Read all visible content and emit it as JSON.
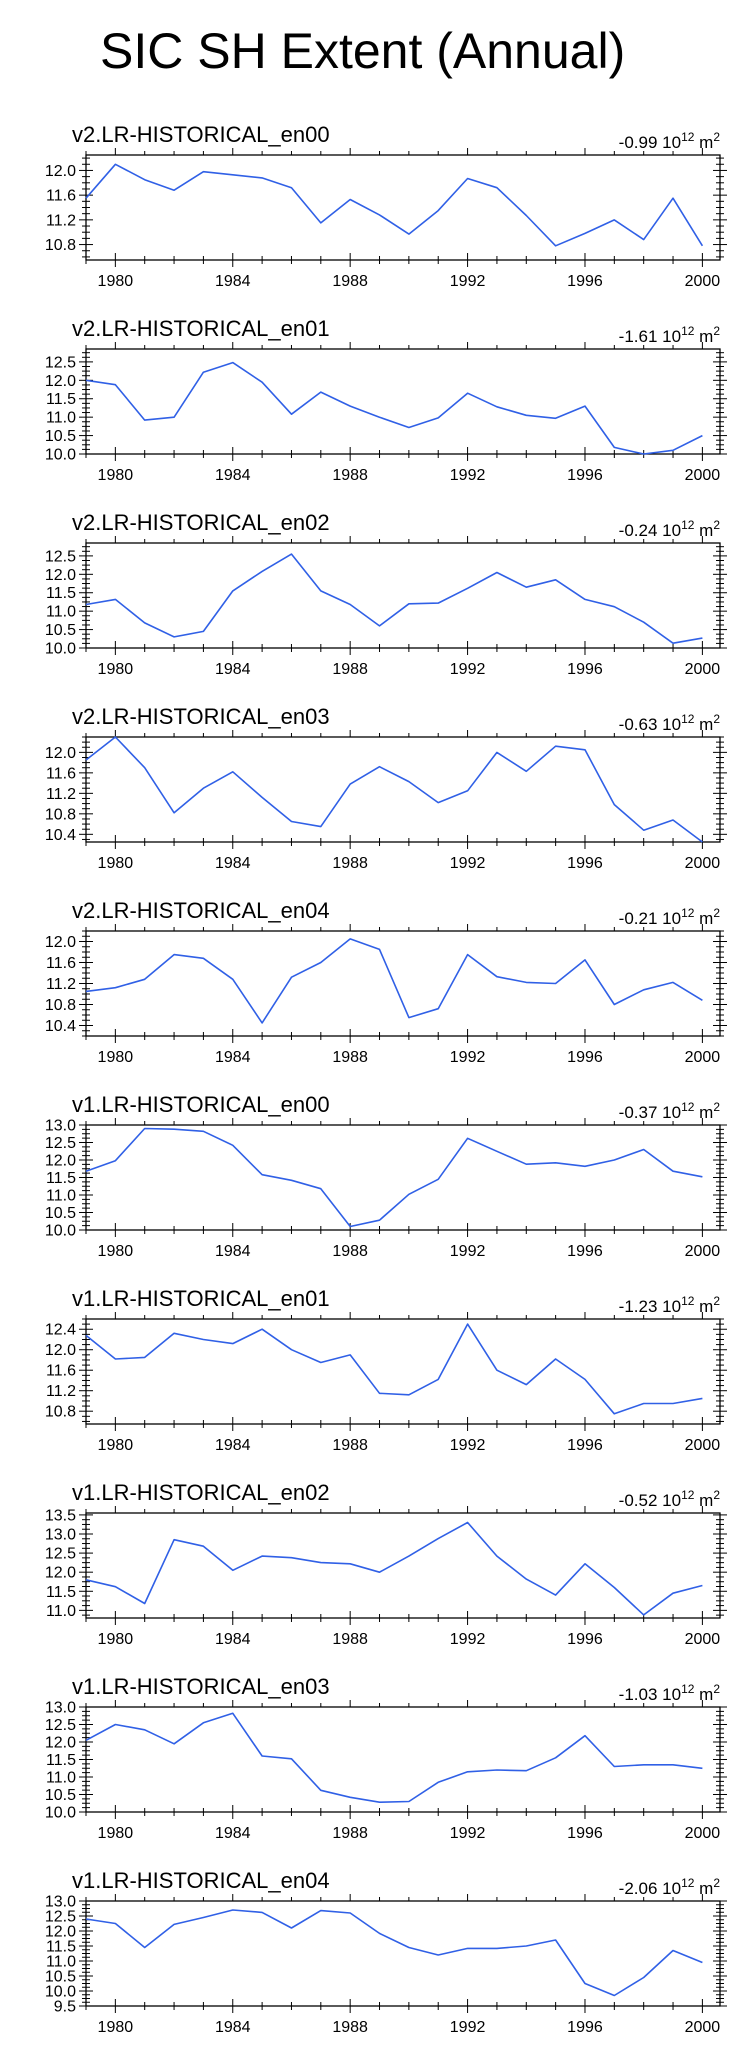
{
  "page": {
    "title": "SIC SH Extent (Annual)"
  },
  "style": {
    "line_color": "#3060e6",
    "axis_color": "#000000"
  },
  "chart_data": [
    {
      "type": "line",
      "title": "v2.LR-HISTORICAL_en00",
      "trend": "-0.99",
      "trend_units": "10",
      "trend_exp": "12",
      "trend_unit_m": "m",
      "trend_unit_exp": "2",
      "x": [
        1979,
        1980,
        1981,
        1982,
        1983,
        1984,
        1985,
        1986,
        1987,
        1988,
        1989,
        1990,
        1991,
        1992,
        1993,
        1994,
        1995,
        1996,
        1997,
        1998,
        1999,
        2000
      ],
      "values": [
        11.55,
        12.1,
        11.85,
        11.68,
        11.98,
        11.93,
        11.88,
        11.72,
        11.15,
        11.53,
        11.28,
        10.97,
        11.35,
        11.87,
        11.72,
        11.27,
        10.78,
        10.98,
        11.2,
        10.88,
        11.55,
        10.78
      ],
      "xlim": [
        1979,
        2000.6
      ],
      "ylim": [
        10.55,
        12.25
      ],
      "xticks": [
        "1980",
        "1984",
        "1988",
        "1992",
        "1996",
        "2000"
      ],
      "yticks": [
        "10.8",
        "11.2",
        "11.6",
        "12.0"
      ],
      "ytick_values": [
        10.8,
        11.2,
        11.6,
        12.0
      ]
    },
    {
      "type": "line",
      "title": "v2.LR-HISTORICAL_en01",
      "trend": "-1.61",
      "trend_units": "10",
      "trend_exp": "12",
      "trend_unit_m": "m",
      "trend_unit_exp": "2",
      "x": [
        1979,
        1980,
        1981,
        1982,
        1983,
        1984,
        1985,
        1986,
        1987,
        1988,
        1989,
        1990,
        1991,
        1992,
        1993,
        1994,
        1995,
        1996,
        1997,
        1998,
        1999,
        2000
      ],
      "values": [
        12.0,
        11.88,
        10.92,
        11.0,
        12.22,
        12.48,
        11.95,
        11.08,
        11.68,
        11.3,
        11.0,
        10.72,
        10.98,
        11.65,
        11.28,
        11.05,
        10.97,
        11.3,
        10.18,
        10.0,
        10.1,
        10.5
      ],
      "xlim": [
        1979,
        2000.6
      ],
      "ylim": [
        10.0,
        12.85
      ],
      "xticks": [
        "1980",
        "1984",
        "1988",
        "1992",
        "1996",
        "2000"
      ],
      "yticks": [
        "10.0",
        "10.5",
        "11.0",
        "11.5",
        "12.0",
        "12.5"
      ],
      "ytick_values": [
        10.0,
        10.5,
        11.0,
        11.5,
        12.0,
        12.5
      ]
    },
    {
      "type": "line",
      "title": "v2.LR-HISTORICAL_en02",
      "trend": "-0.24",
      "trend_units": "10",
      "trend_exp": "12",
      "trend_unit_m": "m",
      "trend_unit_exp": "2",
      "x": [
        1979,
        1980,
        1981,
        1982,
        1983,
        1984,
        1985,
        1986,
        1987,
        1988,
        1989,
        1990,
        1991,
        1992,
        1993,
        1994,
        1995,
        1996,
        1997,
        1998,
        1999,
        2000
      ],
      "values": [
        11.18,
        11.32,
        10.68,
        10.3,
        10.45,
        11.55,
        12.08,
        12.55,
        11.55,
        11.18,
        10.6,
        11.2,
        11.22,
        11.62,
        12.05,
        11.65,
        11.85,
        11.32,
        11.12,
        10.7,
        10.13,
        10.27
      ],
      "xlim": [
        1979,
        2000.6
      ],
      "ylim": [
        10.0,
        12.85
      ],
      "xticks": [
        "1980",
        "1984",
        "1988",
        "1992",
        "1996",
        "2000"
      ],
      "yticks": [
        "10.0",
        "10.5",
        "11.0",
        "11.5",
        "12.0",
        "12.5"
      ],
      "ytick_values": [
        10.0,
        10.5,
        11.0,
        11.5,
        12.0,
        12.5
      ]
    },
    {
      "type": "line",
      "title": "v2.LR-HISTORICAL_en03",
      "trend": "-0.63",
      "trend_units": "10",
      "trend_exp": "12",
      "trend_unit_m": "m",
      "trend_unit_exp": "2",
      "x": [
        1979,
        1980,
        1981,
        1982,
        1983,
        1984,
        1985,
        1986,
        1987,
        1988,
        1989,
        1990,
        1991,
        1992,
        1993,
        1994,
        1995,
        1996,
        1997,
        1998,
        1999,
        2000
      ],
      "values": [
        11.85,
        12.3,
        11.7,
        10.82,
        11.3,
        11.62,
        11.12,
        10.65,
        10.55,
        11.38,
        11.72,
        11.43,
        11.02,
        11.25,
        12.0,
        11.63,
        12.12,
        12.05,
        10.98,
        10.48,
        10.68,
        10.25
      ],
      "xlim": [
        1979,
        2000.6
      ],
      "ylim": [
        10.25,
        12.3
      ],
      "xticks": [
        "1980",
        "1984",
        "1988",
        "1992",
        "1996",
        "2000"
      ],
      "yticks": [
        "10.4",
        "10.8",
        "11.2",
        "11.6",
        "12.0"
      ],
      "ytick_values": [
        10.4,
        10.8,
        11.2,
        11.6,
        12.0
      ]
    },
    {
      "type": "line",
      "title": "v2.LR-HISTORICAL_en04",
      "trend": "-0.21",
      "trend_units": "10",
      "trend_exp": "12",
      "trend_unit_m": "m",
      "trend_unit_exp": "2",
      "x": [
        1979,
        1980,
        1981,
        1982,
        1983,
        1984,
        1985,
        1986,
        1987,
        1988,
        1989,
        1990,
        1991,
        1992,
        1993,
        1994,
        1995,
        1996,
        1997,
        1998,
        1999,
        2000
      ],
      "values": [
        11.05,
        11.12,
        11.28,
        11.75,
        11.68,
        11.28,
        10.45,
        11.32,
        11.6,
        12.05,
        11.85,
        10.55,
        10.72,
        11.75,
        11.33,
        11.22,
        11.2,
        11.65,
        10.8,
        11.08,
        11.22,
        10.88
      ],
      "xlim": [
        1979,
        2000.6
      ],
      "ylim": [
        10.2,
        12.2
      ],
      "xticks": [
        "1980",
        "1984",
        "1988",
        "1992",
        "1996",
        "2000"
      ],
      "yticks": [
        "10.4",
        "10.8",
        "11.2",
        "11.6",
        "12.0"
      ],
      "ytick_values": [
        10.4,
        10.8,
        11.2,
        11.6,
        12.0
      ]
    },
    {
      "type": "line",
      "title": "v1.LR-HISTORICAL_en00",
      "trend": "-0.37",
      "trend_units": "10",
      "trend_exp": "12",
      "trend_unit_m": "m",
      "trend_unit_exp": "2",
      "x": [
        1979,
        1980,
        1981,
        1982,
        1983,
        1984,
        1985,
        1986,
        1987,
        1988,
        1989,
        1990,
        1991,
        1992,
        1993,
        1994,
        1995,
        1996,
        1997,
        1998,
        1999,
        2000
      ],
      "values": [
        11.68,
        11.98,
        12.9,
        12.88,
        12.82,
        12.42,
        11.58,
        11.42,
        11.18,
        10.1,
        10.28,
        11.02,
        11.45,
        12.62,
        12.25,
        11.88,
        11.92,
        11.82,
        12.0,
        12.3,
        11.68,
        11.52
      ],
      "xlim": [
        1979,
        2000.6
      ],
      "ylim": [
        10.0,
        13.0
      ],
      "xticks": [
        "1980",
        "1984",
        "1988",
        "1992",
        "1996",
        "2000"
      ],
      "yticks": [
        "10.0",
        "10.5",
        "11.0",
        "11.5",
        "12.0",
        "12.5",
        "13.0"
      ],
      "ytick_values": [
        10.0,
        10.5,
        11.0,
        11.5,
        12.0,
        12.5,
        13.0
      ]
    },
    {
      "type": "line",
      "title": "v1.LR-HISTORICAL_en01",
      "trend": "-1.23",
      "trend_units": "10",
      "trend_exp": "12",
      "trend_unit_m": "m",
      "trend_unit_exp": "2",
      "x": [
        1979,
        1980,
        1981,
        1982,
        1983,
        1984,
        1985,
        1986,
        1987,
        1988,
        1989,
        1990,
        1991,
        1992,
        1993,
        1994,
        1995,
        1996,
        1997,
        1998,
        1999,
        2000
      ],
      "values": [
        12.28,
        11.82,
        11.85,
        12.32,
        12.2,
        12.12,
        12.4,
        12.0,
        11.75,
        11.9,
        11.15,
        11.12,
        11.42,
        12.5,
        11.6,
        11.32,
        11.82,
        11.42,
        10.75,
        10.95,
        10.95,
        11.05
      ],
      "xlim": [
        1979,
        2000.6
      ],
      "ylim": [
        10.55,
        12.6
      ],
      "xticks": [
        "1980",
        "1984",
        "1988",
        "1992",
        "1996",
        "2000"
      ],
      "yticks": [
        "10.8",
        "11.2",
        "11.6",
        "12.0",
        "12.4"
      ],
      "ytick_values": [
        10.8,
        11.2,
        11.6,
        12.0,
        12.4
      ]
    },
    {
      "type": "line",
      "title": "v1.LR-HISTORICAL_en02",
      "trend": "-0.52",
      "trend_units": "10",
      "trend_exp": "12",
      "trend_unit_m": "m",
      "trend_unit_exp": "2",
      "x": [
        1979,
        1980,
        1981,
        1982,
        1983,
        1984,
        1985,
        1986,
        1987,
        1988,
        1989,
        1990,
        1991,
        1992,
        1993,
        1994,
        1995,
        1996,
        1997,
        1998,
        1999,
        2000
      ],
      "values": [
        11.8,
        11.62,
        11.18,
        12.85,
        12.68,
        12.05,
        12.42,
        12.38,
        12.25,
        12.22,
        12.0,
        12.42,
        12.88,
        13.3,
        12.42,
        11.82,
        11.4,
        12.22,
        11.6,
        10.88,
        11.45,
        11.65
      ],
      "xlim": [
        1979,
        2000.6
      ],
      "ylim": [
        10.8,
        13.55
      ],
      "xticks": [
        "1980",
        "1984",
        "1988",
        "1992",
        "1996",
        "2000"
      ],
      "yticks": [
        "11.0",
        "11.5",
        "12.0",
        "12.5",
        "13.0",
        "13.5"
      ],
      "ytick_values": [
        11.0,
        11.5,
        12.0,
        12.5,
        13.0,
        13.5
      ]
    },
    {
      "type": "line",
      "title": "v1.LR-HISTORICAL_en03",
      "trend": "-1.03",
      "trend_units": "10",
      "trend_exp": "12",
      "trend_unit_m": "m",
      "trend_unit_exp": "2",
      "x": [
        1979,
        1980,
        1981,
        1982,
        1983,
        1984,
        1985,
        1986,
        1987,
        1988,
        1989,
        1990,
        1991,
        1992,
        1993,
        1994,
        1995,
        1996,
        1997,
        1998,
        1999,
        2000
      ],
      "values": [
        12.05,
        12.5,
        12.35,
        11.95,
        12.55,
        12.82,
        11.6,
        11.52,
        10.62,
        10.42,
        10.28,
        10.3,
        10.85,
        11.15,
        11.2,
        11.18,
        11.55,
        12.18,
        11.3,
        11.35,
        11.35,
        11.25
      ],
      "xlim": [
        1979,
        2000.6
      ],
      "ylim": [
        10.0,
        13.0
      ],
      "xticks": [
        "1980",
        "1984",
        "1988",
        "1992",
        "1996",
        "2000"
      ],
      "yticks": [
        "10.0",
        "10.5",
        "11.0",
        "11.5",
        "12.0",
        "12.5",
        "13.0"
      ],
      "ytick_values": [
        10.0,
        10.5,
        11.0,
        11.5,
        12.0,
        12.5,
        13.0
      ]
    },
    {
      "type": "line",
      "title": "v1.LR-HISTORICAL_en04",
      "trend": "-2.06",
      "trend_units": "10",
      "trend_exp": "12",
      "trend_unit_m": "m",
      "trend_unit_exp": "2",
      "x": [
        1979,
        1980,
        1981,
        1982,
        1983,
        1984,
        1985,
        1986,
        1987,
        1988,
        1989,
        1990,
        1991,
        1992,
        1993,
        1994,
        1995,
        1996,
        1997,
        1998,
        1999,
        2000
      ],
      "values": [
        12.4,
        12.25,
        11.45,
        12.22,
        12.45,
        12.7,
        12.62,
        12.1,
        12.68,
        12.6,
        11.92,
        11.45,
        11.2,
        11.42,
        11.42,
        11.5,
        11.7,
        10.25,
        9.85,
        10.45,
        11.35,
        10.95
      ],
      "xlim": [
        1979,
        2000.6
      ],
      "ylim": [
        9.5,
        13.0
      ],
      "xticks": [
        "1980",
        "1984",
        "1988",
        "1992",
        "1996",
        "2000"
      ],
      "yticks": [
        "9.5",
        "10.0",
        "10.5",
        "11.0",
        "11.5",
        "12.0",
        "12.5",
        "13.0"
      ],
      "ytick_values": [
        9.5,
        10.0,
        10.5,
        11.0,
        11.5,
        12.0,
        12.5,
        13.0
      ]
    }
  ]
}
